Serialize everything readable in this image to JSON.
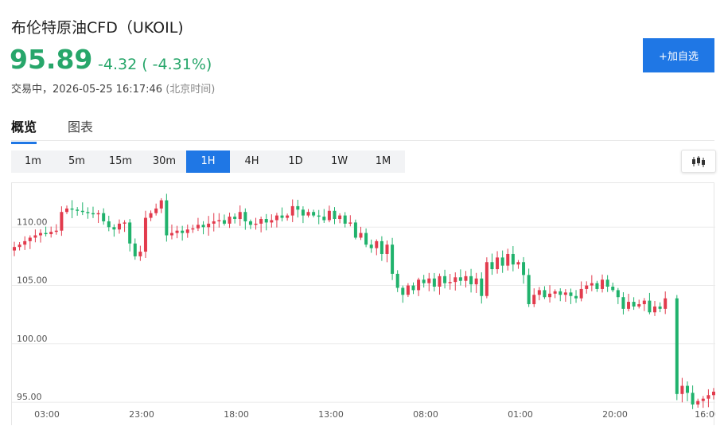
{
  "instrument": {
    "title": "布伦特原油CFD（UKOIL)",
    "price": "95.89",
    "change": "-4.32 ( -4.31%)",
    "status": "交易中，2026-05-25 16:17:46",
    "timezone": "(北京时间)"
  },
  "actions": {
    "add_watchlist": "+加自选"
  },
  "tabs": [
    {
      "label": "概览",
      "active": true
    },
    {
      "label": "图表",
      "active": false
    }
  ],
  "intervals": [
    {
      "label": "1m"
    },
    {
      "label": "5m"
    },
    {
      "label": "15m"
    },
    {
      "label": "30m"
    },
    {
      "label": "1H",
      "active": true
    },
    {
      "label": "4H"
    },
    {
      "label": "1D"
    },
    {
      "label": "1W"
    },
    {
      "label": "1M"
    }
  ],
  "chart_type_icon": "candlestick-icon",
  "colors": {
    "up": "#e23b4d",
    "down": "#20b26c",
    "accent": "#1f77e5",
    "price_down": "#27a66a"
  },
  "chart_data": {
    "type": "candlestick",
    "x_ticks": [
      "03:00",
      "23:00",
      "18:00",
      "13:00",
      "08:00",
      "01:00",
      "20:00",
      "16:00"
    ],
    "y_ticks": [
      95.0,
      100.0,
      105.0,
      110.0
    ],
    "ylim": [
      94.8,
      113.5
    ],
    "grid": true,
    "close_series": [
      108.3,
      108.5,
      108.8,
      109.1,
      109.3,
      109.5,
      109.4,
      109.6,
      109.7,
      111.3,
      111.6,
      111.5,
      111.4,
      111.3,
      111.2,
      111.1,
      111.2,
      110.5,
      110.0,
      109.8,
      110.3,
      110.4,
      108.6,
      107.5,
      107.9,
      110.8,
      111.2,
      111.6,
      112.3,
      109.3,
      109.5,
      109.7,
      109.5,
      109.8,
      109.9,
      110.2,
      110.0,
      110.3,
      110.5,
      110.6,
      110.3,
      110.9,
      110.7,
      111.3,
      110.5,
      110.2,
      110.3,
      110.7,
      110.4,
      110.6,
      111.0,
      110.8,
      111.0,
      111.8,
      111.5,
      111.0,
      111.3,
      111.0,
      110.9,
      110.6,
      111.4,
      110.7,
      111.0,
      110.3,
      110.4,
      109.1,
      109.5,
      108.5,
      108.2,
      108.8,
      107.7,
      108.5,
      106.0,
      104.8,
      104.2,
      105.0,
      104.6,
      105.5,
      105.2,
      105.6,
      104.9,
      105.8,
      105.2,
      105.3,
      105.7,
      105.4,
      105.8,
      105.1,
      105.6,
      104.1,
      107.0,
      106.4,
      107.4,
      106.7,
      107.7,
      106.8,
      107.0,
      105.9,
      103.4,
      104.2,
      104.6,
      104.0,
      104.3,
      104.5,
      104.2,
      104.4,
      104.1,
      103.9,
      104.7,
      105.0,
      105.2,
      104.7,
      105.5,
      104.9,
      104.6,
      104.0,
      103.0,
      103.6,
      103.2,
      103.4,
      103.7,
      102.7,
      103.2,
      103.0,
      103.9,
      95.7,
      96.4,
      95.8,
      94.8,
      95.1,
      95.3,
      95.6,
      95.9
    ],
    "gap_after_index": 124
  }
}
